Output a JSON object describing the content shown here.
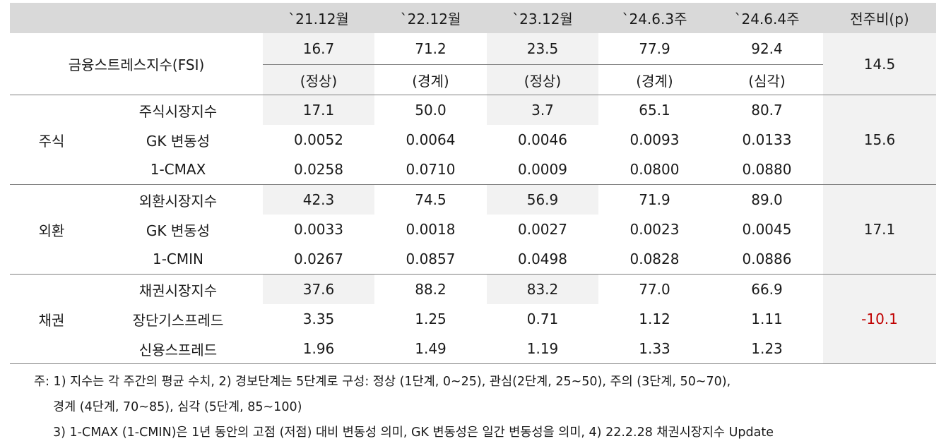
{
  "header": {
    "periods": [
      "`21.12월",
      "`22.12월",
      "`23.12월",
      "`24.6.3주",
      "`24.6.4주"
    ],
    "change_label": "전주비(p)"
  },
  "fsi": {
    "label": "금융스트레스지수(FSI)",
    "values": [
      "16.7",
      "71.2",
      "23.5",
      "77.9",
      "92.4"
    ],
    "status": [
      "(정상)",
      "(경계)",
      "(정상)",
      "(경계)",
      "(심각)"
    ],
    "change": "14.5"
  },
  "groups": [
    {
      "name": "주식",
      "change": "15.6",
      "rows": [
        {
          "label": "주식시장지수",
          "values": [
            "17.1",
            "50.0",
            "3.7",
            "65.1",
            "80.7"
          ]
        },
        {
          "label": "GK 변동성",
          "values": [
            "0.0052",
            "0.0064",
            "0.0046",
            "0.0093",
            "0.0133"
          ]
        },
        {
          "label": "1-CMAX",
          "values": [
            "0.0258",
            "0.0710",
            "0.0009",
            "0.0800",
            "0.0880"
          ]
        }
      ]
    },
    {
      "name": "외환",
      "change": "17.1",
      "rows": [
        {
          "label": "외환시장지수",
          "values": [
            "42.3",
            "74.5",
            "56.9",
            "71.9",
            "89.0"
          ]
        },
        {
          "label": "GK 변동성",
          "values": [
            "0.0033",
            "0.0018",
            "0.0027",
            "0.0023",
            "0.0045"
          ]
        },
        {
          "label": "1-CMIN",
          "values": [
            "0.0267",
            "0.0857",
            "0.0498",
            "0.0828",
            "0.0886"
          ]
        }
      ]
    },
    {
      "name": "채권",
      "change": "-10.1",
      "rows": [
        {
          "label": "채권시장지수",
          "values": [
            "37.6",
            "88.2",
            "83.2",
            "77.0",
            "66.9"
          ]
        },
        {
          "label": "장단기스프레드",
          "values": [
            "3.35",
            "1.25",
            "0.71",
            "1.12",
            "1.11"
          ]
        },
        {
          "label": "신용스프레드",
          "values": [
            "1.96",
            "1.49",
            "1.19",
            "1.33",
            "1.23"
          ]
        }
      ]
    }
  ],
  "notes": [
    "주: 1) 지수는 각 주간의 평균 수치, 2) 경보단계는 5단계로 구성: 정상 (1단계, 0~25), 관심(2단계, 25~50), 주의 (3단계, 50~70),",
    "경계 (4단계, 70~85), 심각 (5단계, 85~100)",
    "3) 1-CMAX (1-CMIN)은 1년 동안의 고점 (저점) 대비 변동성 의미, GK 변동성은 일간 변동성을 의미, 4) 22.2.28 채권시장지수 Update"
  ],
  "colors": {
    "header_bg": "#d9d9d9",
    "shade_bg": "#f2f2f2",
    "negative": "#c00000"
  }
}
